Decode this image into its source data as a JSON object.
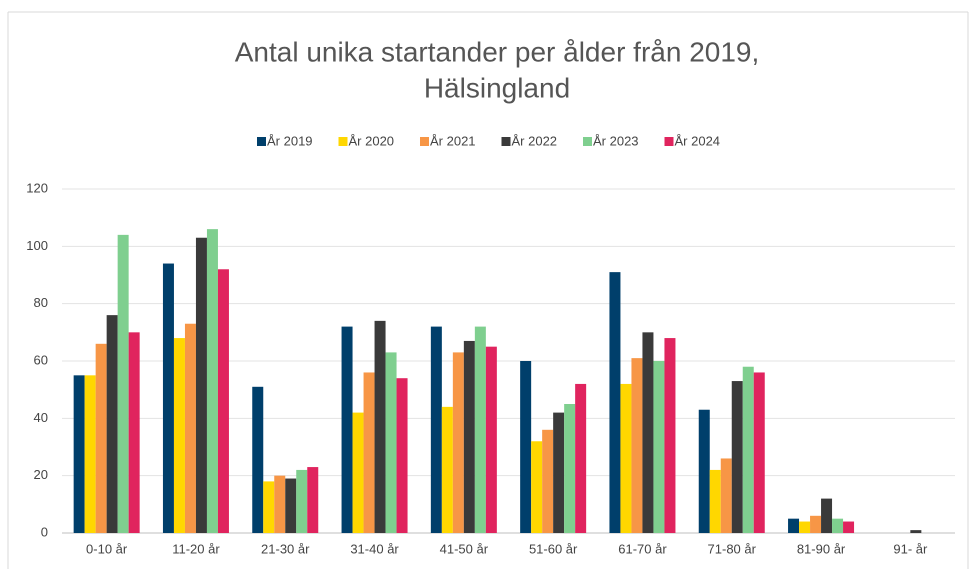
{
  "chart_data": {
    "type": "bar",
    "title": [
      "Antal unika startander per ålder från 2019,",
      "Hälsingland"
    ],
    "categories": [
      "0-10 år",
      "11-20 år",
      "21-30 år",
      "31-40 år",
      "41-50 år",
      "51-60 år",
      "61-70 år",
      "71-80 år",
      "81-90 år",
      "91- år"
    ],
    "series": [
      {
        "name": "År 2019",
        "color": "#003f6b",
        "values": [
          55,
          94,
          51,
          72,
          72,
          60,
          91,
          43,
          5,
          0
        ]
      },
      {
        "name": "År 2020",
        "color": "#ffd700",
        "values": [
          55,
          68,
          18,
          42,
          44,
          32,
          52,
          22,
          4,
          0
        ]
      },
      {
        "name": "År 2021",
        "color": "#f79646",
        "values": [
          66,
          73,
          20,
          56,
          63,
          36,
          61,
          26,
          6,
          0
        ]
      },
      {
        "name": "År 2022",
        "color": "#3a3a3a",
        "values": [
          76,
          103,
          19,
          74,
          67,
          42,
          70,
          53,
          12,
          1
        ]
      },
      {
        "name": "År 2023",
        "color": "#7fcf8f",
        "values": [
          104,
          106,
          22,
          63,
          72,
          45,
          60,
          58,
          5,
          0
        ]
      },
      {
        "name": "År 2024",
        "color": "#e0245e",
        "values": [
          70,
          92,
          23,
          54,
          65,
          52,
          68,
          56,
          4,
          0
        ]
      }
    ],
    "ylim": [
      0,
      120
    ],
    "yticks": [
      0,
      20,
      40,
      60,
      80,
      100,
      120
    ],
    "grid": true,
    "legend": "top"
  }
}
